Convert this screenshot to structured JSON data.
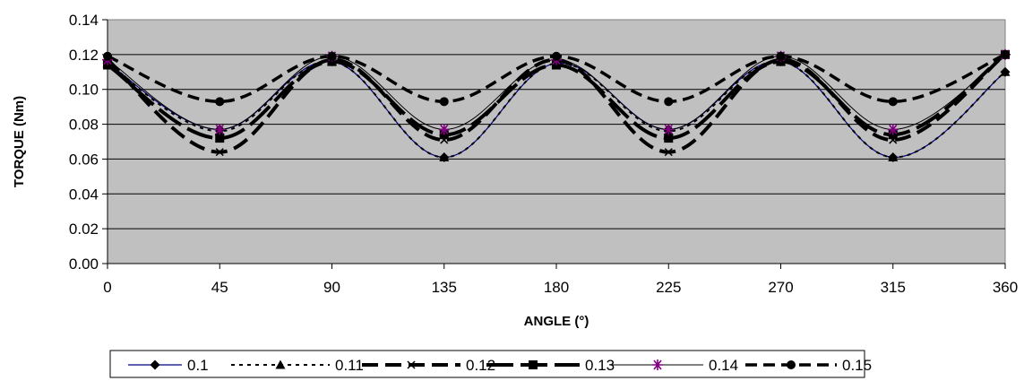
{
  "chart_data": {
    "type": "line",
    "title": "",
    "xlabel": "ANGLE (°)",
    "ylabel": "TORQUE (Nm)",
    "x": [
      0,
      45,
      90,
      135,
      180,
      225,
      270,
      315,
      360
    ],
    "xlim": [
      0,
      360
    ],
    "ylim": [
      0,
      0.14
    ],
    "x_ticks": [
      "0",
      "45",
      "90",
      "135",
      "180",
      "225",
      "270",
      "315",
      "360"
    ],
    "y_ticks": [
      "0.00",
      "0.02",
      "0.04",
      "0.06",
      "0.08",
      "0.10",
      "0.12",
      "0.14"
    ],
    "grid": "horizontal",
    "plot_background": "#c0c0c0",
    "legend_position": "bottom",
    "series": [
      {
        "name": "0.1",
        "values": [
          0.115,
          0.077,
          0.116,
          0.061,
          0.115,
          0.077,
          0.116,
          0.061,
          0.11
        ],
        "color": "#000080",
        "marker": "diamond"
      },
      {
        "name": "0.11",
        "values": [
          0.115,
          0.076,
          0.116,
          0.061,
          0.115,
          0.076,
          0.116,
          0.061,
          0.11
        ],
        "color": "#000000",
        "marker": "triangle"
      },
      {
        "name": "0.12",
        "values": [
          0.117,
          0.064,
          0.117,
          0.071,
          0.117,
          0.064,
          0.117,
          0.071,
          0.12
        ],
        "color": "#000000",
        "marker": "x"
      },
      {
        "name": "0.13",
        "values": [
          0.114,
          0.072,
          0.116,
          0.074,
          0.114,
          0.072,
          0.116,
          0.074,
          0.12
        ],
        "color": "#000000",
        "marker": "square"
      },
      {
        "name": "0.14",
        "values": [
          0.117,
          0.077,
          0.119,
          0.077,
          0.117,
          0.077,
          0.119,
          0.077,
          0.12
        ],
        "color": "#000000",
        "marker": "asterisk"
      },
      {
        "name": "0.15",
        "values": [
          0.119,
          0.093,
          0.119,
          0.093,
          0.119,
          0.093,
          0.119,
          0.093,
          0.12
        ],
        "color": "#000000",
        "marker": "circle"
      }
    ]
  }
}
